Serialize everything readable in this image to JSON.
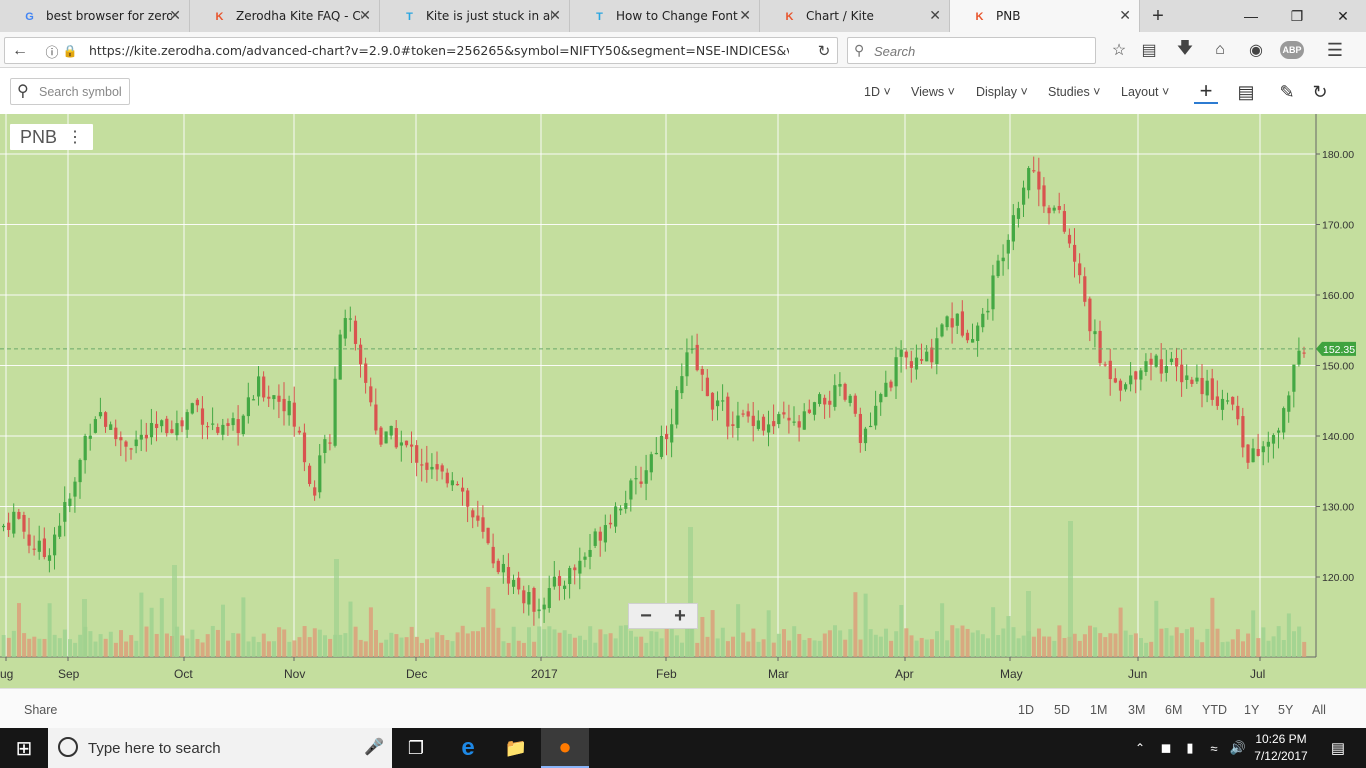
{
  "browser": {
    "tabs": [
      {
        "title": "best browser for zerodha",
        "favicon": "G",
        "color": "#4285f4"
      },
      {
        "title": "Zerodha Kite FAQ - Com",
        "favicon": "K",
        "color": "#e8542c"
      },
      {
        "title": "Kite is just stuck in all br",
        "favicon": "T",
        "color": "#2aa6e0"
      },
      {
        "title": "How to Change Font col",
        "favicon": "T",
        "color": "#2aa6e0"
      },
      {
        "title": "Chart / Kite",
        "favicon": "K",
        "color": "#e8542c"
      },
      {
        "title": "PNB",
        "favicon": "K",
        "color": "#e8542c"
      }
    ],
    "url": "https://kite.zerodha.com/advanced-chart?v=2.9.0#token=256265&symbol=NIFTY50&segment=NSE-INDICES&v",
    "search_placeholder": "Search",
    "addon_badge": "ABP"
  },
  "toolbar": {
    "symbol_search_placeholder": "Search symbol",
    "interval": "1D",
    "views": "Views",
    "display": "Display",
    "studies": "Studies",
    "layout": "Layout"
  },
  "chart": {
    "symbol": "PNB",
    "last_price": "152.35",
    "x_labels": [
      "ug",
      "Sep",
      "Oct",
      "Nov",
      "Dec",
      "2017",
      "Feb",
      "Mar",
      "Apr",
      "May",
      "Jun",
      "Jul"
    ],
    "y_labels": [
      "180.00",
      "170.00",
      "160.00",
      "150.00",
      "140.00",
      "130.00",
      "120.00"
    ]
  },
  "chart_data": {
    "type": "candlestick",
    "symbol": "PNB",
    "y_ticks": [
      120,
      130,
      140,
      150,
      160,
      170,
      180
    ],
    "last_price": 152.35,
    "x_ticks": [
      "ug",
      "Sep",
      "Oct",
      "Nov",
      "Dec",
      "2017",
      "Feb",
      "Mar",
      "Apr",
      "May",
      "Jun",
      "Jul"
    ],
    "close_path": [
      [
        0,
        127
      ],
      [
        14,
        129
      ],
      [
        28,
        125
      ],
      [
        44,
        123
      ],
      [
        58,
        128
      ],
      [
        72,
        132
      ],
      [
        84,
        140
      ],
      [
        96,
        144
      ],
      [
        112,
        140
      ],
      [
        128,
        139
      ],
      [
        146,
        140
      ],
      [
        160,
        141
      ],
      [
        170,
        142
      ],
      [
        178,
        141
      ],
      [
        192,
        145
      ],
      [
        206,
        142
      ],
      [
        222,
        140
      ],
      [
        240,
        142
      ],
      [
        256,
        147
      ],
      [
        270,
        146
      ],
      [
        284,
        145
      ],
      [
        300,
        139
      ],
      [
        312,
        131
      ],
      [
        322,
        141
      ],
      [
        330,
        137
      ],
      [
        336,
        155
      ],
      [
        346,
        158
      ],
      [
        356,
        150
      ],
      [
        368,
        146
      ],
      [
        378,
        139
      ],
      [
        392,
        140
      ],
      [
        406,
        138
      ],
      [
        418,
        137
      ],
      [
        430,
        135
      ],
      [
        440,
        134
      ],
      [
        454,
        135
      ],
      [
        466,
        130
      ],
      [
        480,
        126
      ],
      [
        494,
        122
      ],
      [
        508,
        120
      ],
      [
        518,
        118
      ],
      [
        530,
        116
      ],
      [
        542,
        117
      ],
      [
        556,
        119
      ],
      [
        572,
        121
      ],
      [
        588,
        124
      ],
      [
        604,
        128
      ],
      [
        620,
        131
      ],
      [
        636,
        133
      ],
      [
        652,
        138
      ],
      [
        666,
        141
      ],
      [
        678,
        147
      ],
      [
        688,
        152
      ],
      [
        700,
        148
      ],
      [
        712,
        145
      ],
      [
        724,
        143
      ],
      [
        738,
        142
      ],
      [
        752,
        143
      ],
      [
        766,
        141
      ],
      [
        780,
        142
      ],
      [
        794,
        141
      ],
      [
        808,
        143
      ],
      [
        822,
        145
      ],
      [
        838,
        146
      ],
      [
        852,
        144
      ],
      [
        862,
        139
      ],
      [
        876,
        144
      ],
      [
        888,
        148
      ],
      [
        900,
        151
      ],
      [
        914,
        150
      ],
      [
        928,
        151
      ],
      [
        942,
        157
      ],
      [
        956,
        156
      ],
      [
        968,
        155
      ],
      [
        980,
        156
      ],
      [
        994,
        163
      ],
      [
        1008,
        170
      ],
      [
        1020,
        175
      ],
      [
        1028,
        179
      ],
      [
        1040,
        174
      ],
      [
        1054,
        172
      ],
      [
        1066,
        168
      ],
      [
        1078,
        162
      ],
      [
        1090,
        155
      ],
      [
        1100,
        150
      ],
      [
        1112,
        149
      ],
      [
        1124,
        147
      ],
      [
        1136,
        150
      ],
      [
        1150,
        151
      ],
      [
        1164,
        150
      ],
      [
        1178,
        149
      ],
      [
        1192,
        148
      ],
      [
        1206,
        147
      ],
      [
        1220,
        145
      ],
      [
        1232,
        144
      ],
      [
        1242,
        138
      ],
      [
        1252,
        137
      ],
      [
        1262,
        138
      ],
      [
        1272,
        139
      ],
      [
        1282,
        143
      ],
      [
        1292,
        150
      ],
      [
        1302,
        151
      ]
    ]
  },
  "ranges": [
    "1D",
    "5D",
    "1M",
    "3M",
    "6M",
    "YTD",
    "1Y",
    "5Y",
    "All"
  ],
  "share_label": "Share",
  "taskbar": {
    "search_placeholder": "Type here to search",
    "time": "10:26 PM",
    "date": "7/12/2017"
  }
}
